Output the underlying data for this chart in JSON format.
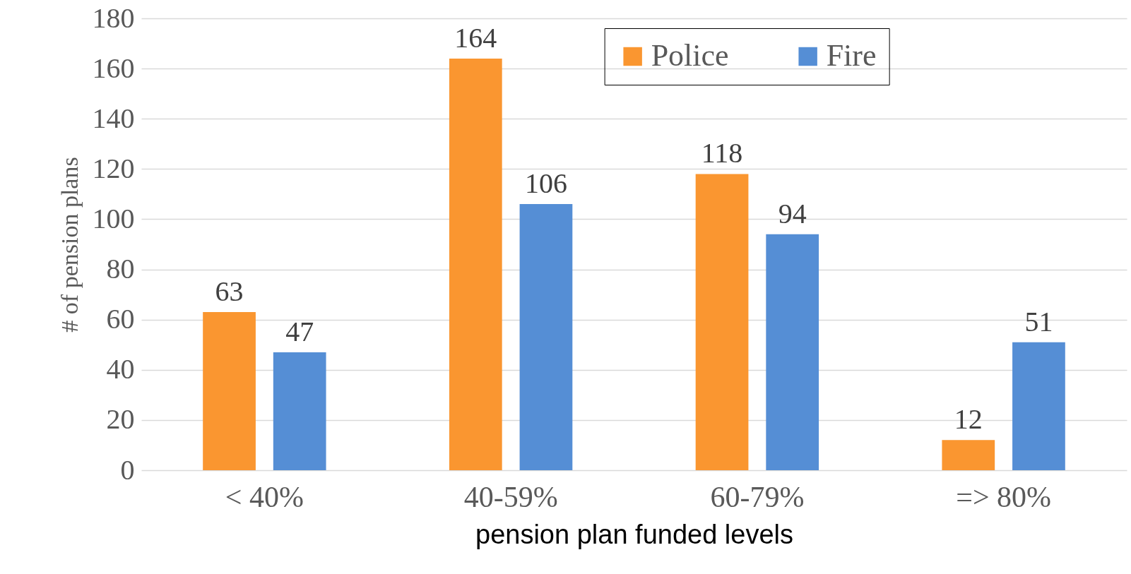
{
  "chart_data": {
    "type": "bar",
    "xlabel": "pension plan funded levels",
    "ylabel": "# of pension plans",
    "categories": [
      "< 40%",
      "40-59%",
      "60-79%",
      "=> 80%"
    ],
    "series": [
      {
        "name": "Police",
        "color": "#fa9630",
        "values": [
          63,
          164,
          118,
          12
        ]
      },
      {
        "name": "Fire",
        "color": "#558ed5",
        "values": [
          47,
          106,
          94,
          51
        ]
      }
    ],
    "ylim": [
      0,
      180
    ],
    "yticks": [
      0,
      20,
      40,
      60,
      80,
      100,
      120,
      140,
      160,
      180
    ],
    "grid": "y",
    "legend": "top right",
    "data_labels": true
  }
}
